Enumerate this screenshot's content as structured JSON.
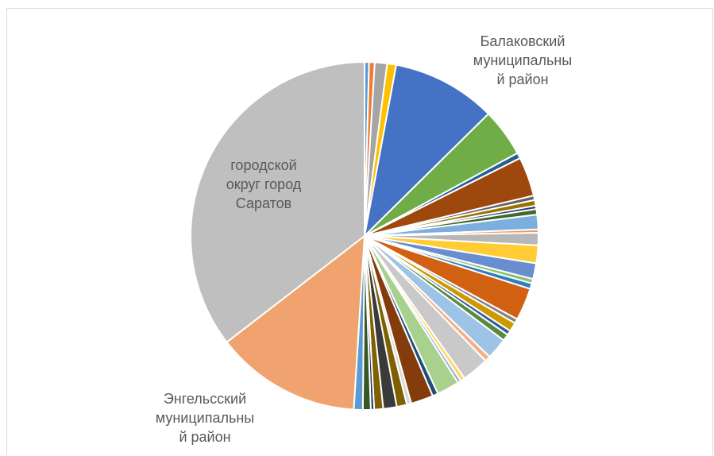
{
  "chart_data": {
    "type": "pie",
    "title": "",
    "slices": [
      {
        "label": "",
        "value": 0.4,
        "color": "#5b9bd5"
      },
      {
        "label": "",
        "value": 0.5,
        "color": "#ed7d31"
      },
      {
        "label": "",
        "value": 1.1,
        "color": "#a5a5a5"
      },
      {
        "label": "",
        "value": 0.8,
        "color": "#ffc000"
      },
      {
        "label": "Балаковский муниципальный район",
        "value": 9.3,
        "color": "#4472c4"
      },
      {
        "label": "",
        "value": 4.3,
        "color": "#70ad47"
      },
      {
        "label": "",
        "value": 0.5,
        "color": "#255e91"
      },
      {
        "label": "",
        "value": 3.5,
        "color": "#9e480e"
      },
      {
        "label": "",
        "value": 0.4,
        "color": "#636363"
      },
      {
        "label": "",
        "value": 0.5,
        "color": "#997300"
      },
      {
        "label": "",
        "value": 0.3,
        "color": "#264478"
      },
      {
        "label": "",
        "value": 0.5,
        "color": "#43682b"
      },
      {
        "label": "",
        "value": 1.3,
        "color": "#7cafdd"
      },
      {
        "label": "",
        "value": 0.3,
        "color": "#f1975a"
      },
      {
        "label": "",
        "value": 1.1,
        "color": "#b7b7b7"
      },
      {
        "label": "",
        "value": 1.6,
        "color": "#ffcd33"
      },
      {
        "label": "",
        "value": 1.4,
        "color": "#698ed0"
      },
      {
        "label": "",
        "value": 0.4,
        "color": "#8cc168"
      },
      {
        "label": "",
        "value": 0.5,
        "color": "#327dc2"
      },
      {
        "label": "",
        "value": 2.9,
        "color": "#d26012"
      },
      {
        "label": "",
        "value": 0.4,
        "color": "#848484"
      },
      {
        "label": "",
        "value": 0.8,
        "color": "#cc9a00"
      },
      {
        "label": "",
        "value": 0.4,
        "color": "#335aa1"
      },
      {
        "label": "",
        "value": 0.6,
        "color": "#5a8a39"
      },
      {
        "label": "",
        "value": 1.9,
        "color": "#9dc3e6"
      },
      {
        "label": "",
        "value": 0.5,
        "color": "#f4b183"
      },
      {
        "label": "",
        "value": 2.4,
        "color": "#c9c9c9"
      },
      {
        "label": "",
        "value": 0.4,
        "color": "#ffd966"
      },
      {
        "label": "",
        "value": 0.3,
        "color": "#8faadc"
      },
      {
        "label": "",
        "value": 2.0,
        "color": "#a9d18e"
      },
      {
        "label": "",
        "value": 0.5,
        "color": "#1f4e79"
      },
      {
        "label": "",
        "value": 2.0,
        "color": "#843c0c"
      },
      {
        "label": "",
        "value": 0.4,
        "color": "#d9d9d9"
      },
      {
        "label": "",
        "value": 0.9,
        "color": "#7f6000"
      },
      {
        "label": "",
        "value": 1.2,
        "color": "#3a3a3a"
      },
      {
        "label": "",
        "value": 0.8,
        "color": "#806000"
      },
      {
        "label": "",
        "value": 0.3,
        "color": "#203864"
      },
      {
        "label": "",
        "value": 0.7,
        "color": "#385723"
      },
      {
        "label": "",
        "value": 0.8,
        "color": "#5b9bd5"
      },
      {
        "label": "Энгельсский муниципальный район",
        "value": 13.0,
        "color": "#f0a36e"
      },
      {
        "label": "городской округ город Саратов",
        "value": 34.0,
        "color": "#bfbfbf"
      }
    ],
    "labels": {
      "saratov": "городской\nокруг город\nСаратов",
      "balakovo": "Балаковский\nмуниципальны\nй район",
      "engels": "Энгельсский\nмуниципальны\nй район"
    },
    "legend": "none"
  }
}
